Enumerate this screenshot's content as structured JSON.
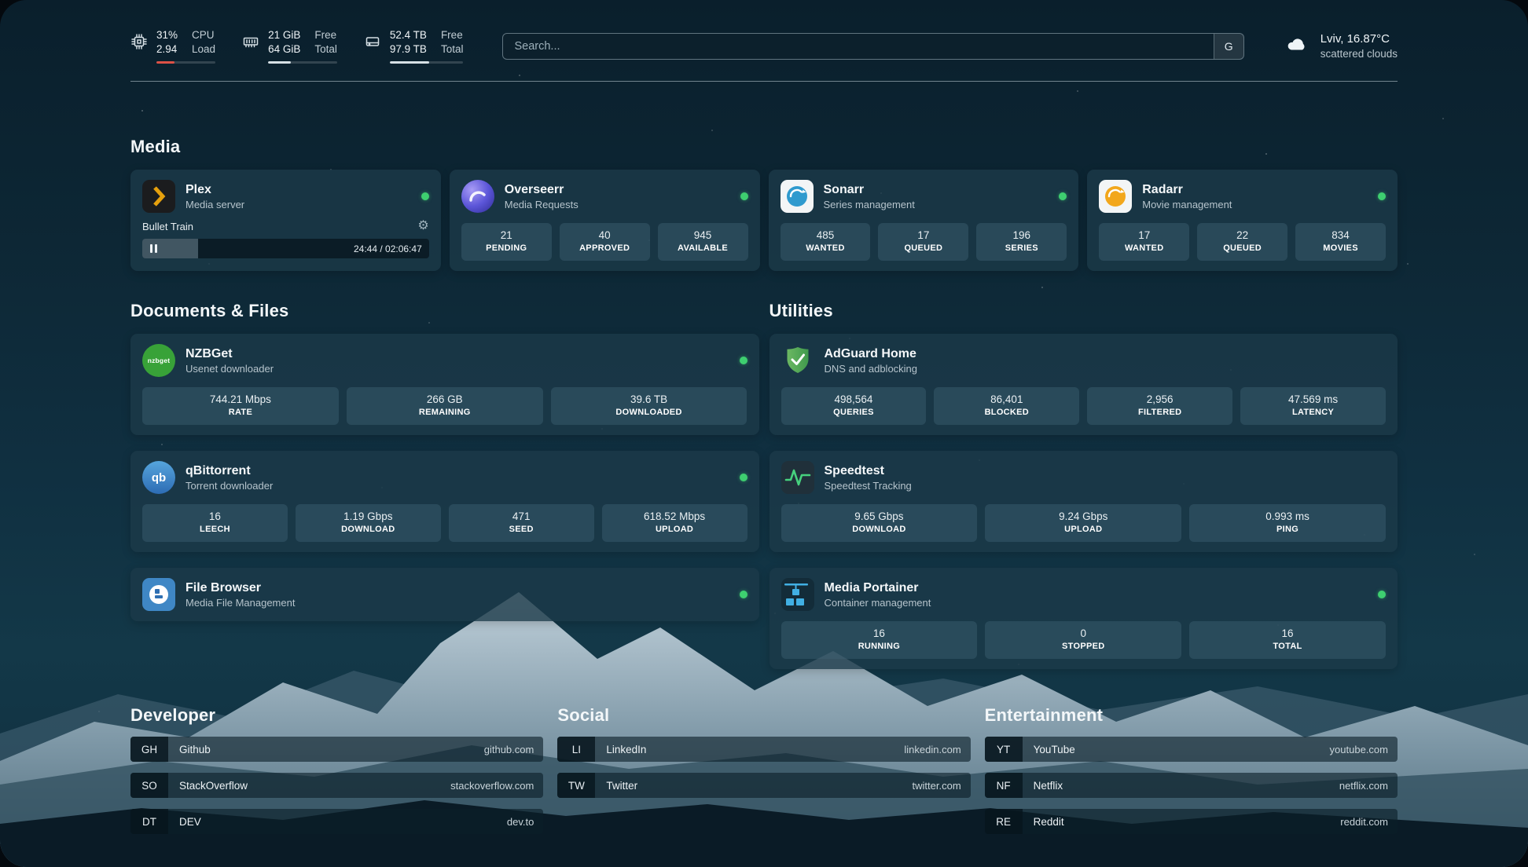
{
  "colors": {
    "status_online": "#3ecf70",
    "cpu_bar": "#dd5146",
    "plex_amber": "#e5a00d",
    "card_bg": "#1b3949"
  },
  "icons": {
    "gear": "⚙",
    "nzbget_label": "nzbget",
    "qbittorrent_label": "qb"
  },
  "header": {
    "cpu": {
      "value1": "31%",
      "value2": "2.94",
      "label1": "CPU",
      "label2": "Load",
      "fill_percent": 31
    },
    "ram": {
      "value1": "21 GiB",
      "value2": "64 GiB",
      "label1": "Free",
      "label2": "Total",
      "fill_percent": 33
    },
    "disk": {
      "value1": "52.4 TB",
      "value2": "97.9 TB",
      "label1": "Free",
      "label2": "Total",
      "fill_percent": 54
    },
    "search": {
      "placeholder": "Search...",
      "button_label": "G"
    },
    "weather": {
      "line1": "Lviv, 16.87°C",
      "line2": "scattered clouds"
    }
  },
  "media": {
    "title": "Media",
    "apps": {
      "plex": {
        "name": "Plex",
        "subtitle": "Media server",
        "now_playing": "Bullet Train",
        "time": "24:44 / 02:06:47",
        "progress_percent": 19.5
      },
      "overseerr": {
        "name": "Overseerr",
        "subtitle": "Media Requests",
        "stats": [
          {
            "value": "21",
            "label": "PENDING"
          },
          {
            "value": "40",
            "label": "APPROVED"
          },
          {
            "value": "945",
            "label": "AVAILABLE"
          }
        ]
      },
      "sonarr": {
        "name": "Sonarr",
        "subtitle": "Series management",
        "stats": [
          {
            "value": "485",
            "label": "WANTED"
          },
          {
            "value": "17",
            "label": "QUEUED"
          },
          {
            "value": "196",
            "label": "SERIES"
          }
        ]
      },
      "radarr": {
        "name": "Radarr",
        "subtitle": "Movie management",
        "stats": [
          {
            "value": "17",
            "label": "WANTED"
          },
          {
            "value": "22",
            "label": "QUEUED"
          },
          {
            "value": "834",
            "label": "MOVIES"
          }
        ]
      }
    }
  },
  "documents": {
    "title": "Documents & Files",
    "apps": {
      "nzbget": {
        "name": "NZBGet",
        "subtitle": "Usenet downloader",
        "stats": [
          {
            "value": "744.21 Mbps",
            "label": "RATE"
          },
          {
            "value": "266 GB",
            "label": "REMAINING"
          },
          {
            "value": "39.6 TB",
            "label": "DOWNLOADED"
          }
        ]
      },
      "qbittorrent": {
        "name": "qBittorrent",
        "subtitle": "Torrent downloader",
        "stats": [
          {
            "value": "16",
            "label": "LEECH"
          },
          {
            "value": "1.19 Gbps",
            "label": "DOWNLOAD"
          },
          {
            "value": "471",
            "label": "SEED"
          },
          {
            "value": "618.52 Mbps",
            "label": "UPLOAD"
          }
        ]
      },
      "filebrowser": {
        "name": "File Browser",
        "subtitle": "Media File Management"
      }
    }
  },
  "utilities": {
    "title": "Utilities",
    "apps": {
      "adguard": {
        "name": "AdGuard Home",
        "subtitle": "DNS and adblocking",
        "stats": [
          {
            "value": "498,564",
            "label": "QUERIES"
          },
          {
            "value": "86,401",
            "label": "BLOCKED"
          },
          {
            "value": "2,956",
            "label": "FILTERED"
          },
          {
            "value": "47.569 ms",
            "label": "LATENCY"
          }
        ]
      },
      "speedtest": {
        "name": "Speedtest",
        "subtitle": "Speedtest Tracking",
        "stats": [
          {
            "value": "9.65 Gbps",
            "label": "DOWNLOAD"
          },
          {
            "value": "9.24 Gbps",
            "label": "UPLOAD"
          },
          {
            "value": "0.993 ms",
            "label": "PING"
          }
        ]
      },
      "portainer": {
        "name": "Media Portainer",
        "subtitle": "Container management",
        "stats": [
          {
            "value": "16",
            "label": "RUNNING"
          },
          {
            "value": "0",
            "label": "STOPPED"
          },
          {
            "value": "16",
            "label": "TOTAL"
          }
        ]
      }
    }
  },
  "bookmarks": {
    "developer": {
      "title": "Developer",
      "items": [
        {
          "abbr": "GH",
          "name": "Github",
          "url": "github.com"
        },
        {
          "abbr": "SO",
          "name": "StackOverflow",
          "url": "stackoverflow.com"
        },
        {
          "abbr": "DT",
          "name": "DEV",
          "url": "dev.to"
        }
      ]
    },
    "social": {
      "title": "Social",
      "items": [
        {
          "abbr": "LI",
          "name": "LinkedIn",
          "url": "linkedin.com"
        },
        {
          "abbr": "TW",
          "name": "Twitter",
          "url": "twitter.com"
        }
      ]
    },
    "entertainment": {
      "title": "Entertainment",
      "items": [
        {
          "abbr": "YT",
          "name": "YouTube",
          "url": "youtube.com"
        },
        {
          "abbr": "NF",
          "name": "Netflix",
          "url": "netflix.com"
        },
        {
          "abbr": "RE",
          "name": "Reddit",
          "url": "reddit.com"
        }
      ]
    }
  }
}
